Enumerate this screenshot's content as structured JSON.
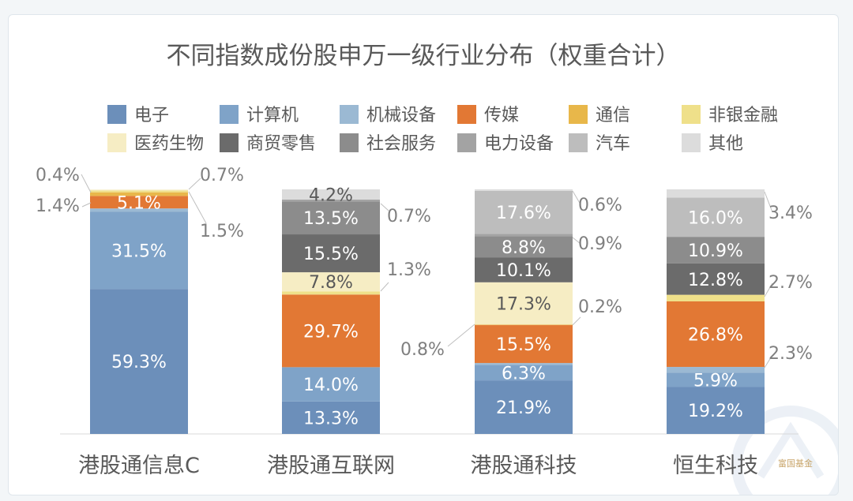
{
  "chart_data": {
    "type": "bar",
    "stacked": true,
    "title": "不同指数成份股申万一级行业分布（权重合计）",
    "categories": [
      "港股通信息C",
      "港股通互联网",
      "港股通科技",
      "恒生科技"
    ],
    "ylim": [
      0,
      100
    ],
    "grid": false,
    "legend_position": "top",
    "value_suffix": "%",
    "series": [
      {
        "name": "电子",
        "color": "#6c8fba",
        "values": [
          59.3,
          13.3,
          21.9,
          19.2
        ]
      },
      {
        "name": "计算机",
        "color": "#7fa3c8",
        "values": [
          31.5,
          14.0,
          6.3,
          5.9
        ]
      },
      {
        "name": "机械设备",
        "color": "#9bb9d3",
        "values": [
          1.4,
          0,
          0.8,
          2.3
        ]
      },
      {
        "name": "传媒",
        "color": "#e27834",
        "values": [
          5.1,
          29.7,
          15.5,
          26.8
        ]
      },
      {
        "name": "通信",
        "color": "#e8b74a",
        "values": [
          1.5,
          0,
          0.2,
          0
        ]
      },
      {
        "name": "非银金融",
        "color": "#efe08a",
        "values": [
          0.7,
          1.3,
          0,
          2.7
        ]
      },
      {
        "name": "医药生物",
        "color": "#f6edc4",
        "values": [
          0.4,
          7.8,
          17.3,
          0
        ]
      },
      {
        "name": "商贸零售",
        "color": "#6b6b6b",
        "values": [
          0,
          15.5,
          10.1,
          12.8
        ]
      },
      {
        "name": "社会服务",
        "color": "#8c8c8c",
        "values": [
          0,
          13.5,
          8.8,
          10.9
        ]
      },
      {
        "name": "电力设备",
        "color": "#a3a3a3",
        "values": [
          0,
          0.7,
          0.9,
          0
        ]
      },
      {
        "name": "汽车",
        "color": "#bdbdbd",
        "values": [
          0,
          0,
          17.6,
          16.0
        ]
      },
      {
        "name": "其他",
        "color": "#dcdcdc",
        "values": [
          0,
          4.2,
          0.6,
          3.4
        ]
      }
    ],
    "data_labels": [
      {
        "category": 0,
        "series": 0,
        "text": "59.3%"
      },
      {
        "category": 0,
        "series": 1,
        "text": "31.5%"
      },
      {
        "category": 0,
        "series": 3,
        "text": "5.1%"
      },
      {
        "category": 0,
        "series": 2,
        "text": "1.4%"
      },
      {
        "category": 0,
        "series": 6,
        "text": "0.4%"
      },
      {
        "category": 0,
        "series": 5,
        "text": "0.7%"
      },
      {
        "category": 0,
        "series": 4,
        "text": "1.5%"
      },
      {
        "category": 1,
        "series": 0,
        "text": "13.3%"
      },
      {
        "category": 1,
        "series": 1,
        "text": "14.0%"
      },
      {
        "category": 1,
        "series": 3,
        "text": "29.7%"
      },
      {
        "category": 1,
        "series": 6,
        "text": "7.8%"
      },
      {
        "category": 1,
        "series": 5,
        "text": "1.3%"
      },
      {
        "category": 1,
        "series": 7,
        "text": "15.5%"
      },
      {
        "category": 1,
        "series": 8,
        "text": "13.5%"
      },
      {
        "category": 1,
        "series": 9,
        "text": "0.7%"
      },
      {
        "category": 1,
        "series": 11,
        "text": "4.2%"
      },
      {
        "category": 2,
        "series": 0,
        "text": "21.9%"
      },
      {
        "category": 2,
        "series": 1,
        "text": "6.3%"
      },
      {
        "category": 2,
        "series": 2,
        "text": "0.8%"
      },
      {
        "category": 2,
        "series": 3,
        "text": "15.5%"
      },
      {
        "category": 2,
        "series": 4,
        "text": "0.2%"
      },
      {
        "category": 2,
        "series": 6,
        "text": "17.3%"
      },
      {
        "category": 2,
        "series": 7,
        "text": "10.1%"
      },
      {
        "category": 2,
        "series": 8,
        "text": "8.8%"
      },
      {
        "category": 2,
        "series": 9,
        "text": "0.9%"
      },
      {
        "category": 2,
        "series": 10,
        "text": "17.6%"
      },
      {
        "category": 2,
        "series": 11,
        "text": "0.6%"
      },
      {
        "category": 3,
        "series": 0,
        "text": "19.2%"
      },
      {
        "category": 3,
        "series": 1,
        "text": "5.9%"
      },
      {
        "category": 3,
        "series": 2,
        "text": "2.3%"
      },
      {
        "category": 3,
        "series": 3,
        "text": "26.8%"
      },
      {
        "category": 3,
        "series": 5,
        "text": "2.7%"
      },
      {
        "category": 3,
        "series": 7,
        "text": "12.8%"
      },
      {
        "category": 3,
        "series": 8,
        "text": "10.9%"
      },
      {
        "category": 3,
        "series": 10,
        "text": "16.0%"
      },
      {
        "category": 3,
        "series": 11,
        "text": "3.4%"
      }
    ]
  },
  "watermark": {
    "text": "富国基金"
  }
}
